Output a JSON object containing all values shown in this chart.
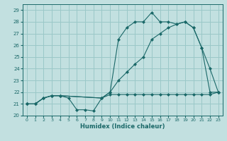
{
  "xlabel": "Humidex (Indice chaleur)",
  "background_color": "#c2e0e0",
  "grid_color": "#9ac8c8",
  "line_color": "#1a6868",
  "xlim": [
    -0.5,
    23.5
  ],
  "ylim": [
    20,
    29.5
  ],
  "xticks": [
    0,
    1,
    2,
    3,
    4,
    5,
    6,
    7,
    8,
    9,
    10,
    11,
    12,
    13,
    14,
    15,
    16,
    17,
    18,
    19,
    20,
    21,
    22,
    23
  ],
  "yticks": [
    20,
    21,
    22,
    23,
    24,
    25,
    26,
    27,
    28,
    29
  ],
  "line1_x": [
    0,
    1,
    2,
    3,
    4,
    5,
    6,
    7,
    8,
    9,
    10,
    11,
    12,
    13,
    14,
    15,
    16,
    17,
    18,
    19,
    20,
    21,
    22,
    23
  ],
  "line1_y": [
    21,
    21,
    21.5,
    21.7,
    21.7,
    21.5,
    20.5,
    20.5,
    20.4,
    21.5,
    21.8,
    21.8,
    21.8,
    21.8,
    21.8,
    21.8,
    21.8,
    21.8,
    21.8,
    21.8,
    21.8,
    21.8,
    21.8,
    22.0
  ],
  "line2_x": [
    0,
    1,
    2,
    3,
    4,
    9,
    10,
    11,
    12,
    13,
    14,
    15,
    16,
    17,
    18,
    19,
    20,
    21,
    22,
    23
  ],
  "line2_y": [
    21,
    21,
    21.5,
    21.7,
    21.7,
    21.5,
    22.0,
    26.5,
    27.5,
    28.0,
    28.0,
    28.8,
    28.0,
    28.0,
    27.8,
    28.0,
    27.5,
    25.8,
    22.0,
    22.0
  ],
  "line3_x": [
    0,
    1,
    2,
    3,
    4,
    9,
    10,
    11,
    12,
    13,
    14,
    15,
    16,
    17,
    18,
    19,
    20,
    21,
    22,
    23
  ],
  "line3_y": [
    21,
    21,
    21.5,
    21.7,
    21.7,
    21.5,
    22.0,
    23.0,
    23.7,
    24.4,
    25.0,
    26.5,
    27.0,
    27.5,
    27.8,
    28.0,
    27.5,
    25.8,
    24.0,
    22.0
  ]
}
